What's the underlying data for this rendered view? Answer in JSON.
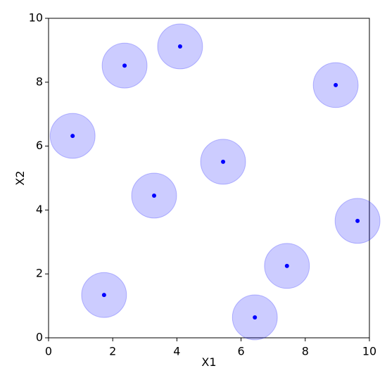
{
  "chart_data": {
    "type": "scatter",
    "x": [
      0.75,
      2.37,
      4.1,
      8.95,
      5.44,
      3.29,
      9.63,
      7.43,
      1.73,
      6.43
    ],
    "values": [
      6.32,
      8.52,
      9.12,
      7.91,
      5.51,
      4.45,
      3.66,
      2.25,
      1.34,
      0.64
    ],
    "radius": 0.7,
    "color": "#0000ff",
    "xlabel": "X1",
    "ylabel": "X2",
    "xlim": [
      0,
      10
    ],
    "ylim": [
      0,
      10
    ],
    "xticks": [
      0,
      2,
      4,
      6,
      8,
      10
    ],
    "yticks": [
      0,
      2,
      4,
      6,
      8,
      10
    ],
    "grid": false
  }
}
